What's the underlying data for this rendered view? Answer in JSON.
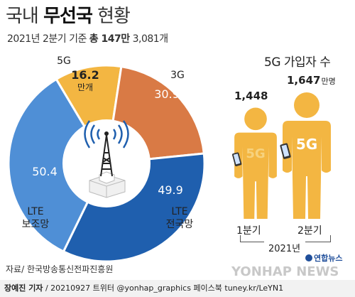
{
  "header": {
    "title_prefix": "국내",
    "title_bold": "무선국",
    "title_suffix": "현황",
    "subtitle_prefix": "2021년 2분기 기준",
    "subtitle_bold": "총 147만",
    "subtitle_suffix": "3,081개"
  },
  "chart_data": [
    {
      "type": "pie",
      "unit": "만개",
      "slices": [
        {
          "label": "5G",
          "value": 16.2,
          "color": "#f3b642"
        },
        {
          "label": "3G",
          "value": 30.9,
          "color": "#d97a45"
        },
        {
          "label": "LTE 전국망",
          "value": 49.9,
          "color": "#1f5fae"
        },
        {
          "label": "LTE 보조망",
          "value": 50.4,
          "color": "#4f8fd6"
        }
      ],
      "center_icon": "radio-tower-icon"
    },
    {
      "type": "bar",
      "title": "5G 가입자 수",
      "unit": "만명",
      "categories": [
        "1분기",
        "2분기"
      ],
      "values": [
        1448,
        1647
      ],
      "value_labels": [
        "1,448",
        "1,647"
      ],
      "figure_label": "5G",
      "year_label": "2021년",
      "icon": "person-with-phone-icon",
      "color": "#f3b642"
    }
  ],
  "source": "자료/ 한국방송통신전파진흥원",
  "footer": {
    "author": "장예진 기자",
    "text": "/ 20210927 트위터 @yonhap_graphics 페이스북 tuney.kr/LeYN1"
  },
  "logos": {
    "agency": "연합뉴스",
    "news": "YONHAP NEWS"
  }
}
